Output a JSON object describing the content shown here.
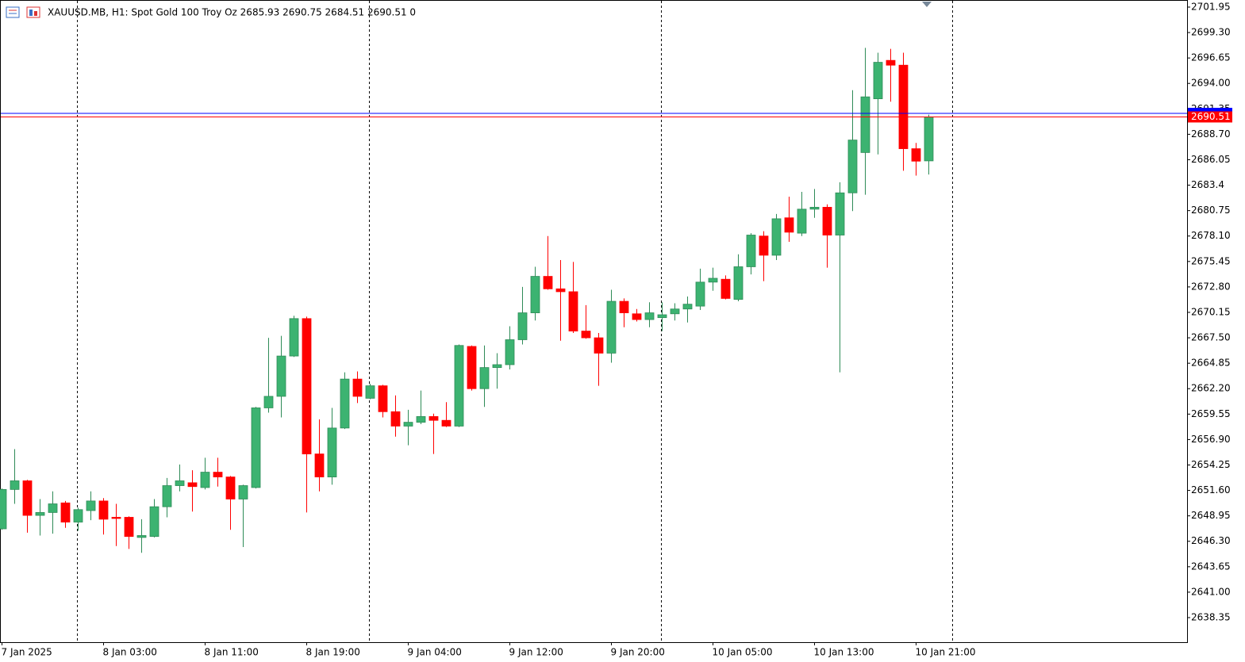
{
  "chart_data": {
    "type": "candlestick",
    "title": "XAUUSD.MB, H1:  Spot Gold 100 Troy Oz  2685.93 2690.75 2684.51 2690.51  0",
    "categories": [
      "7 Jan 2025",
      null,
      null,
      null,
      null,
      null,
      null,
      null,
      "8 Jan 03:00",
      null,
      null,
      null,
      null,
      null,
      null,
      null,
      "8 Jan 11:00",
      null,
      null,
      null,
      null,
      null,
      null,
      null,
      "8 Jan 19:00",
      null,
      null,
      null,
      null,
      null,
      null,
      null,
      "9 Jan 04:00",
      null,
      null,
      null,
      null,
      null,
      null,
      null,
      "9 Jan 12:00",
      null,
      null,
      null,
      null,
      null,
      null,
      null,
      "9 Jan 20:00",
      null,
      null,
      null,
      null,
      null,
      null,
      null,
      "10 Jan 05:00",
      null,
      null,
      null,
      null,
      null,
      null,
      null,
      "10 Jan 13:00",
      null,
      null,
      null,
      null,
      null,
      null,
      null,
      "10 Jan 21:00",
      null
    ],
    "open": [
      2647.6,
      2651.7,
      2652.6,
      2649.0,
      2649.3,
      2650.3,
      2648.3,
      2649.5,
      2650.5,
      2648.8,
      2648.8,
      2646.7,
      2646.8,
      2649.9,
      2652.1,
      2652.4,
      2651.9,
      2653.5,
      2653.0,
      2650.7,
      2651.9,
      2660.2,
      2661.4,
      2665.6,
      2669.5,
      2655.4,
      2653.0,
      2658.1,
      2663.2,
      2661.2,
      2662.5,
      2659.8,
      2658.3,
      2658.7,
      2659.3,
      2658.9,
      2658.3,
      2666.6,
      2662.2,
      2664.4,
      2664.7,
      2667.3,
      2670.1,
      2673.9,
      2672.6,
      2672.3,
      2668.2,
      2667.5,
      2665.9,
      2671.3,
      2670.0,
      2669.4,
      2669.6,
      2670.0,
      2670.5,
      2670.8,
      2673.3,
      2673.6,
      2671.5,
      2674.9,
      2678.1,
      2676.1,
      2680.0,
      2678.4,
      2680.9,
      2681.1,
      2678.2,
      2682.6,
      2686.8,
      2692.4,
      2696.4,
      2695.9,
      2687.2,
      2685.93
    ],
    "high": [
      2651.8,
      2655.9,
      2652.7,
      2650.7,
      2651.5,
      2650.5,
      2649.8,
      2651.5,
      2650.8,
      2650.2,
      2648.9,
      2648.6,
      2650.7,
      2652.9,
      2654.3,
      2653.7,
      2655.0,
      2655.0,
      2653.1,
      2652.2,
      2660.3,
      2667.5,
      2667.7,
      2669.8,
      2669.7,
      2659.0,
      2660.2,
      2663.9,
      2664.0,
      2662.7,
      2662.6,
      2661.5,
      2660.0,
      2662.0,
      2659.6,
      2660.8,
      2666.8,
      2666.7,
      2666.7,
      2665.9,
      2668.7,
      2672.8,
      2674.9,
      2678.1,
      2675.6,
      2675.4,
      2670.9,
      2668.0,
      2672.5,
      2671.6,
      2670.5,
      2671.2,
      2671.2,
      2671.1,
      2671.8,
      2674.7,
      2674.8,
      2674.0,
      2676.2,
      2678.4,
      2678.6,
      2680.4,
      2682.2,
      2682.7,
      2683.0,
      2681.4,
      2683.7,
      2693.3,
      2697.7,
      2697.2,
      2697.6,
      2697.2,
      2687.8,
      2690.75
    ],
    "low": [
      2647.5,
      2650.2,
      2647.2,
      2646.9,
      2647.1,
      2647.7,
      2647.4,
      2648.5,
      2647.0,
      2645.8,
      2645.5,
      2645.1,
      2646.7,
      2648.8,
      2651.5,
      2649.4,
      2651.7,
      2652.0,
      2647.5,
      2645.7,
      2651.8,
      2659.7,
      2659.2,
      2665.5,
      2649.3,
      2651.5,
      2652.2,
      2658.0,
      2660.7,
      2661.1,
      2659.2,
      2657.2,
      2656.3,
      2658.5,
      2655.4,
      2658.2,
      2658.2,
      2662.0,
      2660.3,
      2662.2,
      2664.2,
      2666.8,
      2669.3,
      2672.5,
      2667.2,
      2668.0,
      2667.4,
      2662.5,
      2664.9,
      2668.6,
      2669.2,
      2668.6,
      2668.2,
      2669.3,
      2669.1,
      2670.4,
      2672.4,
      2671.5,
      2671.3,
      2674.1,
      2673.4,
      2675.6,
      2677.5,
      2678.1,
      2680.0,
      2674.8,
      2663.9,
      2680.7,
      2682.4,
      2686.6,
      2692.1,
      2684.9,
      2684.4,
      2684.51
    ],
    "close": [
      2651.7,
      2652.6,
      2649.0,
      2649.3,
      2650.2,
      2648.3,
      2649.6,
      2650.5,
      2648.6,
      2648.7,
      2646.8,
      2646.9,
      2649.9,
      2652.1,
      2652.6,
      2652.0,
      2653.5,
      2653.0,
      2650.7,
      2652.1,
      2660.2,
      2661.4,
      2665.6,
      2669.5,
      2655.4,
      2653.0,
      2658.1,
      2663.2,
      2661.4,
      2662.5,
      2659.8,
      2658.3,
      2658.7,
      2659.3,
      2658.9,
      2658.3,
      2666.7,
      2662.2,
      2664.4,
      2664.7,
      2667.3,
      2670.1,
      2673.9,
      2672.6,
      2672.3,
      2668.2,
      2667.5,
      2665.9,
      2671.3,
      2670.1,
      2669.4,
      2670.1,
      2669.9,
      2670.5,
      2671.0,
      2673.3,
      2673.7,
      2671.6,
      2674.9,
      2678.2,
      2676.1,
      2679.9,
      2678.5,
      2680.9,
      2681.1,
      2678.2,
      2682.6,
      2688.1,
      2692.6,
      2696.2,
      2695.9,
      2687.2,
      2685.9,
      2690.51
    ],
    "up_color": "#3cb371",
    "down_color": "#ff0000",
    "bid": 2690.51,
    "bid_color": "#ff0000",
    "ask": 2690.88,
    "ask_color": "#0000ff",
    "ylim": [
      2635.79,
      2702.69
    ],
    "yticks": [
      2701.95,
      {
        "value": 2699.3,
        "label": "2699.30"
      },
      2696.65,
      {
        "value": 2694,
        "label": "2694.00"
      },
      2691.35,
      {
        "value": 2688.7,
        "label": "2688.70"
      },
      2686.05,
      2683.4,
      2680.75,
      {
        "value": 2678.1,
        "label": "2678.10"
      },
      2675.45,
      {
        "value": 2672.8,
        "label": "2672.80"
      },
      2670.15,
      {
        "value": 2667.5,
        "label": "2667.50"
      },
      2664.85,
      {
        "value": 2662.2,
        "label": "2662.20"
      },
      2659.55,
      {
        "value": 2656.9,
        "label": "2656.90"
      },
      2654.25,
      {
        "value": 2651.6,
        "label": "2651.60"
      },
      2648.95,
      {
        "value": 2646.3,
        "label": "2646.30"
      },
      2643.65,
      {
        "value": 2641,
        "label": "2641.00"
      },
      2638.35
    ]
  }
}
